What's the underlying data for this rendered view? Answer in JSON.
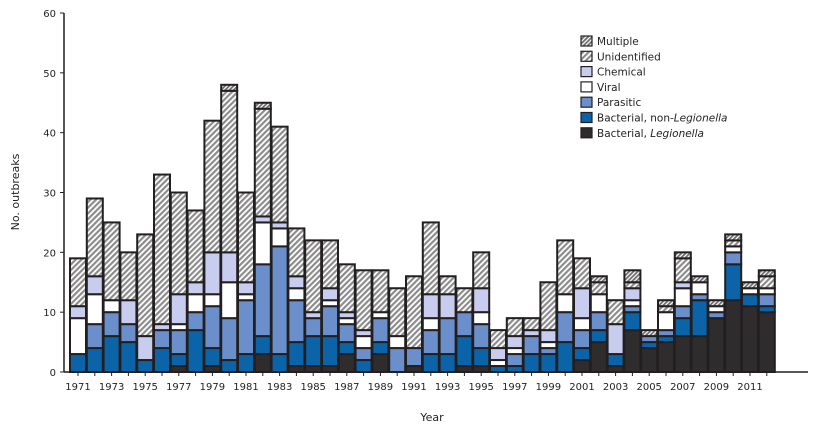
{
  "chart_data": {
    "type": "bar",
    "stacked": true,
    "xlabel": "Year",
    "ylabel": "No. outbreaks",
    "ylim": [
      0,
      60
    ],
    "yticks": [
      0,
      10,
      20,
      30,
      40,
      50,
      60
    ],
    "grid": false,
    "legend_position": "top-right",
    "categories": [
      1971,
      1972,
      1973,
      1974,
      1975,
      1976,
      1977,
      1978,
      1979,
      1980,
      1981,
      1982,
      1983,
      1984,
      1985,
      1986,
      1987,
      1988,
      1989,
      1990,
      1991,
      1992,
      1993,
      1994,
      1995,
      1996,
      1997,
      1998,
      1999,
      2000,
      2001,
      2002,
      2003,
      2004,
      2005,
      2006,
      2007,
      2008,
      2009,
      2010,
      2011,
      2012
    ],
    "xtick_labels": [
      "1971",
      "1973",
      "1975",
      "1977",
      "1979",
      "1981",
      "1983",
      "1985",
      "1987",
      "1989",
      "1991",
      "1993",
      "1995",
      "1997",
      "1999",
      "2001",
      "2003",
      "2005",
      "2007",
      "2009",
      "2011"
    ],
    "series": [
      {
        "name": "Bacterial, Legionella",
        "color": "#2e2c2d",
        "pattern": "solid",
        "values": [
          0,
          0,
          0,
          0,
          0,
          0,
          1,
          0,
          1,
          0,
          0,
          3,
          0,
          1,
          1,
          1,
          3,
          0,
          3,
          0,
          1,
          0,
          0,
          1,
          1,
          0,
          0,
          0,
          0,
          0,
          2,
          5,
          1,
          7,
          4,
          5,
          6,
          6,
          9,
          12,
          11,
          10
        ]
      },
      {
        "name": "Bacterial, non-Legionella",
        "color": "#0b63a8",
        "pattern": "solid",
        "values": [
          3,
          4,
          6,
          5,
          2,
          4,
          2,
          7,
          3,
          2,
          3,
          3,
          3,
          4,
          5,
          5,
          2,
          2,
          2,
          0,
          0,
          3,
          3,
          5,
          3,
          1,
          1,
          3,
          3,
          5,
          2,
          2,
          2,
          3,
          1,
          1,
          3,
          6,
          0,
          6,
          2,
          1
        ]
      },
      {
        "name": "Parasitic",
        "color": "#6b8fca",
        "pattern": "solid",
        "values": [
          0,
          4,
          4,
          3,
          0,
          3,
          4,
          3,
          7,
          7,
          9,
          12,
          18,
          7,
          3,
          5,
          3,
          2,
          4,
          4,
          3,
          4,
          6,
          4,
          4,
          0,
          2,
          3,
          1,
          5,
          3,
          3,
          0,
          1,
          1,
          1,
          2,
          1,
          1,
          2,
          0,
          2
        ]
      },
      {
        "name": "Viral",
        "color": "#ffffff",
        "pattern": "solid",
        "values": [
          6,
          5,
          2,
          0,
          0,
          0,
          1,
          3,
          2,
          6,
          1,
          7,
          3,
          2,
          0,
          1,
          1,
          2,
          1,
          2,
          0,
          2,
          0,
          0,
          2,
          1,
          1,
          0,
          1,
          3,
          2,
          3,
          0,
          1,
          0,
          3,
          3,
          2,
          1,
          1,
          1,
          1
        ]
      },
      {
        "name": "Chemical",
        "color": "#c8cdf0",
        "pattern": "solid",
        "values": [
          2,
          3,
          0,
          4,
          4,
          1,
          5,
          2,
          7,
          5,
          2,
          1,
          1,
          2,
          1,
          2,
          1,
          1,
          0,
          0,
          0,
          4,
          4,
          0,
          4,
          2,
          2,
          1,
          2,
          0,
          5,
          0,
          5,
          2,
          0,
          0,
          1,
          0,
          0,
          0,
          0,
          0
        ]
      },
      {
        "name": "Unidentified",
        "color": "#9a9a9a",
        "pattern": "hatch",
        "values": [
          8,
          13,
          13,
          8,
          17,
          25,
          17,
          12,
          22,
          27,
          15,
          18,
          16,
          8,
          12,
          8,
          8,
          10,
          7,
          8,
          12,
          12,
          3,
          4,
          6,
          3,
          3,
          2,
          8,
          9,
          5,
          2,
          4,
          1,
          0,
          1,
          4,
          0,
          0,
          1,
          0,
          2
        ]
      },
      {
        "name": "Multiple",
        "color": "#7d7d7d",
        "pattern": "hatch-dense",
        "values": [
          0,
          0,
          0,
          0,
          0,
          0,
          0,
          0,
          0,
          1,
          0,
          1,
          0,
          0,
          0,
          0,
          0,
          0,
          0,
          0,
          0,
          0,
          0,
          0,
          0,
          0,
          0,
          0,
          0,
          0,
          0,
          1,
          0,
          2,
          1,
          1,
          1,
          1,
          1,
          1,
          1,
          1
        ]
      }
    ],
    "legend_order": [
      "Multiple",
      "Unidentified",
      "Chemical",
      "Viral",
      "Parasitic",
      "Bacterial, non-Legionella",
      "Bacterial, Legionella"
    ]
  }
}
